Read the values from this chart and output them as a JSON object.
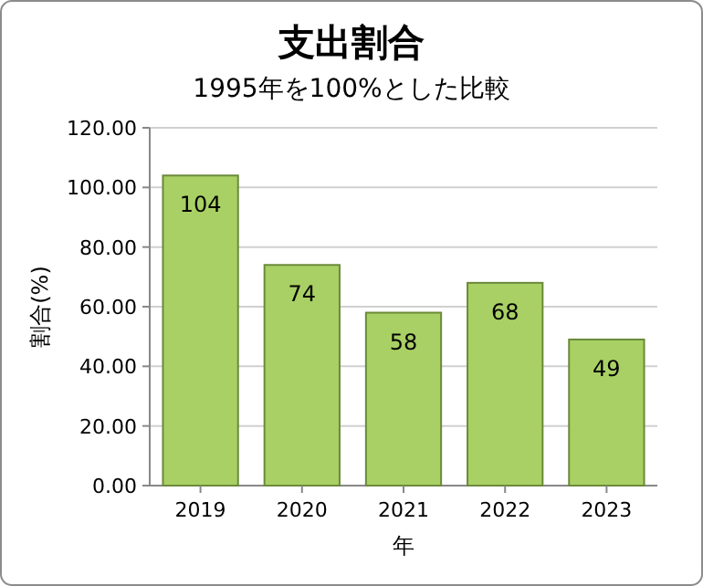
{
  "chart_data": {
    "type": "bar",
    "title": "支出割合",
    "subtitle": "1995年を100%とした比較",
    "xlabel": "年",
    "ylabel": "割合(%)",
    "categories": [
      "2019",
      "2020",
      "2021",
      "2022",
      "2023"
    ],
    "values": [
      104,
      74,
      58,
      68,
      49
    ],
    "color": "#a9d064",
    "ylim": [
      0,
      120
    ],
    "yticks": [
      {
        "value": 0,
        "label": "0.00"
      },
      {
        "value": 20,
        "label": "20.00"
      },
      {
        "value": 40,
        "label": "40.00"
      },
      {
        "value": 60,
        "label": "60.00"
      },
      {
        "value": 80,
        "label": "80.00"
      },
      {
        "value": 100,
        "label": "100.00"
      },
      {
        "value": 120,
        "label": "120.00"
      }
    ],
    "grid": "y",
    "data_labels": true
  }
}
